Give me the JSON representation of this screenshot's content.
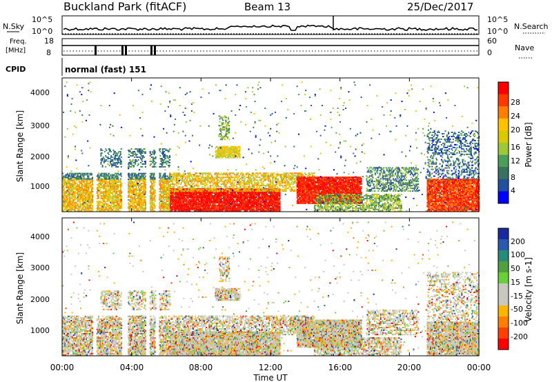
{
  "header": {
    "station": "Buckland Park (fitACF)",
    "beam": "Beam 13",
    "date": "25/Dec/2017"
  },
  "top_panel": {
    "left_label": "N.Sky",
    "right_label": "N.Search",
    "left_ticks": [
      "10^5",
      "10^0"
    ],
    "right_ticks": [
      "10^5",
      "10^0"
    ]
  },
  "freq_panel": {
    "left_label_line1": "Freq.",
    "left_label_line2": "[MHz]",
    "right_label": "Nave",
    "left_ticks": [
      "18",
      "8"
    ],
    "right_ticks": [
      "60",
      "0"
    ]
  },
  "cpid": {
    "label": "CPID",
    "value": "normal (fast) 151"
  },
  "chart_data": [
    {
      "type": "heatmap",
      "title": "",
      "xlabel": "",
      "ylabel": "Slant Range [km]",
      "x_range_hours": [
        0,
        24
      ],
      "ylim": [
        200,
        4600
      ],
      "y_ticks": [
        "4000",
        "3000",
        "2000",
        "1000"
      ],
      "colorbar_label": "Power [dB]",
      "colorbar_ticks": [
        "28",
        "24",
        "20",
        "16",
        "12",
        "8",
        "4"
      ],
      "colorbar_colors": [
        "#ff0000",
        "#ff3a00",
        "#ff7e00",
        "#ffc100",
        "#dcc800",
        "#9dc83a",
        "#4a9e5a",
        "#3a7060",
        "#2050a0",
        "#0000ff"
      ]
    },
    {
      "type": "heatmap",
      "title": "",
      "xlabel": "Time UT",
      "ylabel": "Slant Range [km]",
      "x_range_hours": [
        0,
        24
      ],
      "ylim": [
        200,
        4600
      ],
      "x_ticks": [
        "00:00",
        "04:00",
        "08:00",
        "12:00",
        "16:00",
        "20:00",
        "00:00"
      ],
      "y_ticks": [
        "4000",
        "3000",
        "2000",
        "1000"
      ],
      "colorbar_label": "Velocity [m s-1]",
      "colorbar_ticks": [
        "200",
        "100",
        "50",
        "15",
        "-15",
        "-50",
        "-100",
        "-200"
      ],
      "colorbar_colors": [
        "#1a2a9e",
        "#2a5ab0",
        "#2a8a7a",
        "#50a040",
        "#6ad03a",
        "#c8c8c0",
        "#c8c8c0",
        "#ffb400",
        "#ff8000",
        "#ff4000",
        "#ff0000"
      ]
    }
  ]
}
